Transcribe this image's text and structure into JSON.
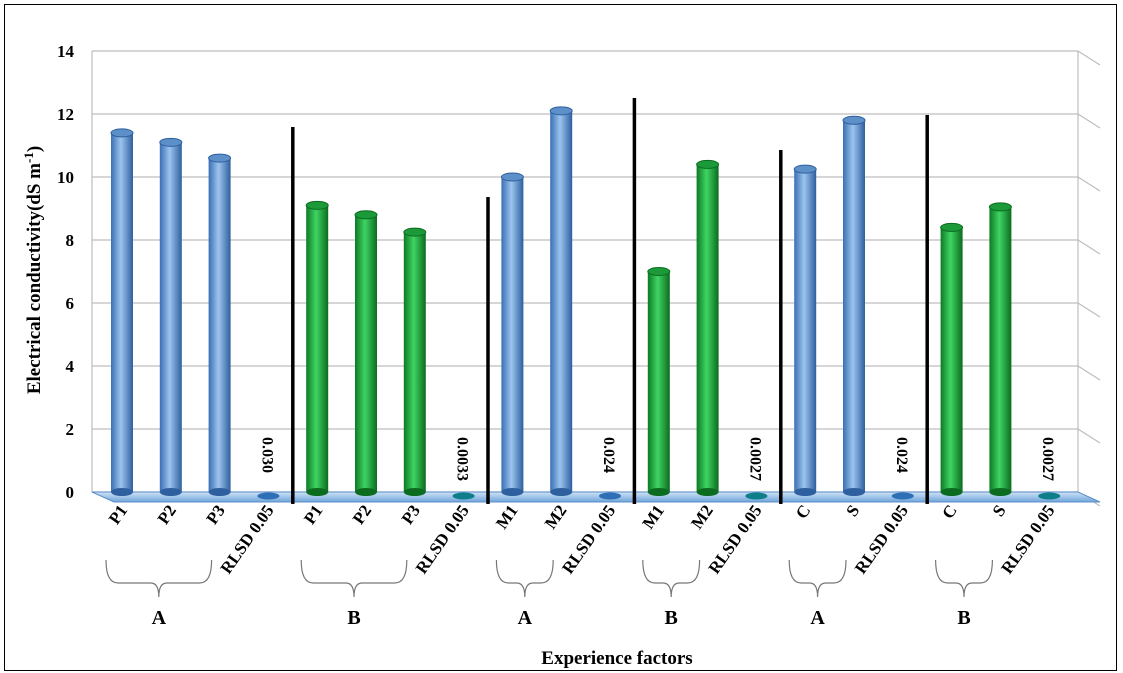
{
  "chart_data": {
    "type": "bar",
    "xlabel": "Experience factors",
    "ylabel": "Electrical conductivity(dS m",
    "ylabel_sup": "-1",
    "ylabel_close": ")",
    "ylim": [
      0,
      14
    ],
    "yticks": [
      "0",
      "2",
      "4",
      "6",
      "8",
      "10",
      "12",
      "14"
    ],
    "grid": true,
    "colors": {
      "A": "#4f8fd8",
      "B": "#16a83a",
      "rlsd": "#2f6fb5"
    },
    "bars": [
      {
        "label": "P1",
        "value": 11.4,
        "group": "A"
      },
      {
        "label": "P2",
        "value": 11.1,
        "group": "A"
      },
      {
        "label": "P3",
        "value": 10.6,
        "group": "A"
      },
      {
        "label": "RLSD 0.05",
        "value": 0.03,
        "group": "A",
        "data_label": "0.030"
      },
      {
        "label": "P1",
        "value": 9.1,
        "group": "B"
      },
      {
        "label": "P2",
        "value": 8.8,
        "group": "B"
      },
      {
        "label": "P3",
        "value": 8.25,
        "group": "B"
      },
      {
        "label": "RLSD 0.05",
        "value": 0.0033,
        "group": "B",
        "data_label": "0.0033"
      },
      {
        "label": "M1",
        "value": 10.0,
        "group": "A"
      },
      {
        "label": "M2",
        "value": 12.1,
        "group": "A"
      },
      {
        "label": "RLSD 0.05",
        "value": 0.024,
        "group": "A",
        "data_label": "0.024"
      },
      {
        "label": "M1",
        "value": 7.0,
        "group": "B"
      },
      {
        "label": "M2",
        "value": 10.4,
        "group": "B"
      },
      {
        "label": "RLSD 0.05",
        "value": 0.0027,
        "group": "B",
        "data_label": "0.0027"
      },
      {
        "label": "C",
        "value": 10.25,
        "group": "A"
      },
      {
        "label": "S",
        "value": 11.8,
        "group": "A"
      },
      {
        "label": "RLSD 0.05",
        "value": 0.024,
        "group": "A",
        "data_label": "0.024"
      },
      {
        "label": "C",
        "value": 8.4,
        "group": "B"
      },
      {
        "label": "S",
        "value": 9.05,
        "group": "B"
      },
      {
        "label": "RLSD 0.05",
        "value": 0.0027,
        "group": "B",
        "data_label": "0.0027"
      }
    ],
    "group_labels": [
      "A",
      "B",
      "A",
      "B",
      "A",
      "B"
    ]
  }
}
